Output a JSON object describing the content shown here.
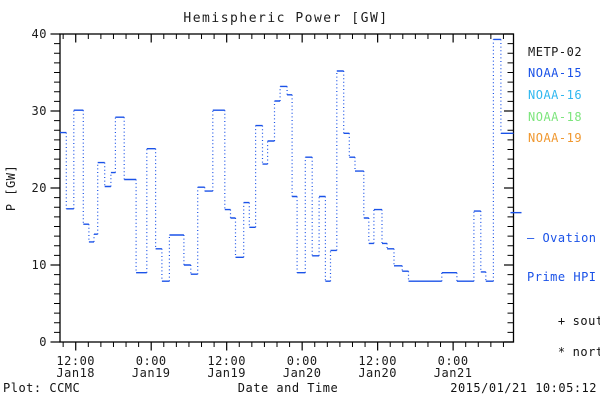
{
  "page": {
    "background": "#ffffff"
  },
  "header": {
    "title": "Hemispheric Power [GW]"
  },
  "legend": {
    "satellites": [
      {
        "label": "METP-02",
        "color": "#1a1a1a"
      },
      {
        "label": "NOAA-15",
        "color": "#1a52e8"
      },
      {
        "label": "NOAA-16",
        "color": "#30b8f0"
      },
      {
        "label": "NOAA-18",
        "color": "#7de57d"
      },
      {
        "label": "NOAA-19",
        "color": "#f09830"
      }
    ],
    "model": {
      "label_line1": "– Ovation",
      "label_line2": "Prime HPI",
      "color": "#1a52e8",
      "marker_value_gw": 16.8
    },
    "markers": [
      {
        "symbol": "+",
        "label": "south"
      },
      {
        "symbol": "*",
        "label": "north"
      }
    ]
  },
  "footer": {
    "left": "Plot: CCMC",
    "center": "Date and Time",
    "right": "2015/01/21 10:05:12"
  },
  "chart_data": {
    "type": "step-line",
    "title": "Hemispheric Power [GW]",
    "xlabel": "Date and Time",
    "ylabel": "P [GW]",
    "ylim": [
      0,
      40
    ],
    "y_tick_labels": [
      "0",
      "10",
      "20",
      "30",
      "40"
    ],
    "y_major_step": 10,
    "y_minor_step": 1.25,
    "x_unit": "hours since 2015-01-18 00:00",
    "xlim": [
      9.5,
      81.6
    ],
    "x_minor_step_hours": 2,
    "x_major_ticks": [
      {
        "hour": 12,
        "time": "12:00",
        "date": "Jan18"
      },
      {
        "hour": 24,
        "time": "0:00",
        "date": "Jan19"
      },
      {
        "hour": 36,
        "time": "12:00",
        "date": "Jan19"
      },
      {
        "hour": 48,
        "time": "0:00",
        "date": "Jan20"
      },
      {
        "hour": 60,
        "time": "12:00",
        "date": "Jan20"
      },
      {
        "hour": 72,
        "time": "0:00",
        "date": "Jan21"
      }
    ],
    "grid": false,
    "legend_position": "right",
    "right_axis_marker_gw": 16.8,
    "series": [
      {
        "name": "Ovation Prime HPI",
        "color": "#1a52e8",
        "style": {
          "horizontal": "solid",
          "vertical": "dotted"
        },
        "end_hour": 81.6,
        "steps_hour_gw": [
          [
            9.5,
            27.2
          ],
          [
            10.5,
            17.3
          ],
          [
            11.7,
            30.1
          ],
          [
            13.2,
            15.3
          ],
          [
            14.1,
            13.0
          ],
          [
            14.9,
            14.0
          ],
          [
            15.5,
            23.3
          ],
          [
            16.6,
            20.2
          ],
          [
            17.6,
            22.0
          ],
          [
            18.3,
            29.2
          ],
          [
            19.7,
            21.1
          ],
          [
            21.6,
            9.0
          ],
          [
            23.3,
            25.1
          ],
          [
            24.7,
            12.1
          ],
          [
            25.7,
            7.9
          ],
          [
            26.9,
            13.9
          ],
          [
            29.2,
            10.0
          ],
          [
            30.3,
            8.8
          ],
          [
            31.4,
            20.1
          ],
          [
            32.5,
            19.6
          ],
          [
            33.8,
            30.1
          ],
          [
            35.7,
            17.2
          ],
          [
            36.6,
            16.1
          ],
          [
            37.4,
            11.0
          ],
          [
            38.7,
            18.1
          ],
          [
            39.6,
            14.9
          ],
          [
            40.6,
            28.1
          ],
          [
            41.7,
            23.1
          ],
          [
            42.5,
            26.1
          ],
          [
            43.6,
            31.3
          ],
          [
            44.5,
            33.2
          ],
          [
            45.6,
            32.1
          ],
          [
            46.4,
            18.9
          ],
          [
            47.2,
            9.0
          ],
          [
            48.5,
            24.0
          ],
          [
            49.6,
            11.2
          ],
          [
            50.7,
            18.9
          ],
          [
            51.7,
            7.9
          ],
          [
            52.5,
            11.9
          ],
          [
            53.5,
            35.2
          ],
          [
            54.6,
            27.1
          ],
          [
            55.5,
            24.0
          ],
          [
            56.4,
            22.2
          ],
          [
            57.8,
            16.1
          ],
          [
            58.6,
            12.8
          ],
          [
            59.4,
            17.2
          ],
          [
            60.7,
            12.8
          ],
          [
            61.5,
            12.1
          ],
          [
            62.6,
            9.9
          ],
          [
            63.9,
            9.2
          ],
          [
            64.9,
            7.9
          ],
          [
            70.2,
            9.0
          ],
          [
            72.6,
            7.9
          ],
          [
            75.3,
            17.0
          ],
          [
            76.4,
            9.1
          ],
          [
            77.2,
            7.9
          ],
          [
            78.4,
            39.3
          ],
          [
            79.6,
            27.1
          ]
        ]
      }
    ]
  }
}
